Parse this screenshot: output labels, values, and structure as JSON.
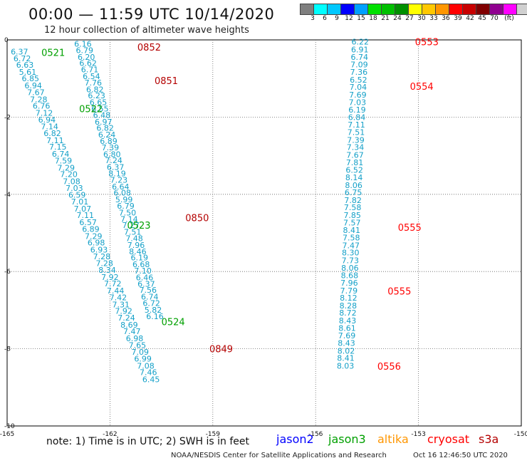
{
  "title": "00:00 — 11:59 UTC 10/14/2020",
  "subtitle": "12 hour collection of altimeter wave heights",
  "colorbar": {
    "colors": [
      "#7f7f7f",
      "#00ffff",
      "#00c8ff",
      "#0000ff",
      "#00a0ff",
      "#00e000",
      "#00c000",
      "#009000",
      "#ffff00",
      "#ffc800",
      "#ff9600",
      "#ff0000",
      "#c80000",
      "#800000",
      "#900090",
      "#ff00ff",
      "#d0d0d0",
      "#000000"
    ],
    "labels": [
      "3",
      "6",
      "9",
      "12",
      "15",
      "18",
      "21",
      "24",
      "27",
      "30",
      "33",
      "36",
      "39",
      "42",
      "45",
      "70"
    ],
    "unit": "(ft)"
  },
  "note": "note: 1) Time is in UTC; 2) SWH is in feet",
  "legend": [
    {
      "label": "jason2",
      "color": "#0000ff"
    },
    {
      "label": "jason3",
      "color": "#00a000"
    },
    {
      "label": "altika",
      "color": "#ff9600"
    },
    {
      "label": "cryosat",
      "color": "#ff0000"
    },
    {
      "label": "s3a",
      "color": "#b40000"
    }
  ],
  "credit": "NOAA/NESDIS Center for Satellite Applications and Research",
  "timestamp": "Oct 16 12:46:50 UTC 2020",
  "chart_data": {
    "type": "scatter",
    "xlim": [
      -165,
      -150
    ],
    "ylim": [
      -10,
      0
    ],
    "x_ticks": [
      "-165",
      "-162",
      "-159",
      "-156",
      "-153",
      "-150"
    ],
    "y_ticks": [
      "0",
      "-2",
      "-4",
      "-6",
      "-8",
      "-10"
    ],
    "grid": true,
    "value_color": "#14a0c8",
    "series": [
      {
        "name": "jason3",
        "color": "#00a000",
        "values": [
          [
            -164.64,
            -0.3,
            6.37
          ],
          [
            -164.56,
            -0.48,
            6.72
          ],
          [
            -164.48,
            -0.65,
            6.63
          ],
          [
            -164.4,
            -0.83,
            5.61
          ],
          [
            -164.32,
            -1.0,
            6.85
          ],
          [
            -164.24,
            -1.18,
            6.94
          ],
          [
            -164.16,
            -1.36,
            7.67
          ],
          [
            -164.08,
            -1.54,
            7.28
          ],
          [
            -164.0,
            -1.71,
            6.76
          ],
          [
            -163.92,
            -1.89,
            7.12
          ],
          [
            -163.84,
            -2.07,
            6.94
          ],
          [
            -163.76,
            -2.24,
            7.14
          ],
          [
            -163.68,
            -2.42,
            6.82
          ],
          [
            -163.6,
            -2.6,
            7.11
          ],
          [
            -163.52,
            -2.77,
            7.15
          ],
          [
            -163.44,
            -2.95,
            6.74
          ],
          [
            -163.36,
            -3.13,
            7.59
          ],
          [
            -163.28,
            -3.31,
            7.29
          ],
          [
            -163.2,
            -3.48,
            7.2
          ],
          [
            -163.12,
            -3.66,
            7.08
          ],
          [
            -163.04,
            -3.84,
            7.03
          ],
          [
            -162.96,
            -4.01,
            6.59
          ],
          [
            -162.88,
            -4.19,
            7.01
          ],
          [
            -162.8,
            -4.37,
            7.07
          ],
          [
            -162.72,
            -4.54,
            7.11
          ],
          [
            -162.64,
            -4.72,
            6.57
          ],
          [
            -162.56,
            -4.9,
            6.89
          ],
          [
            -162.48,
            -5.08,
            7.29
          ],
          [
            -162.4,
            -5.25,
            6.98
          ],
          [
            -162.32,
            -5.43,
            6.93
          ],
          [
            -162.24,
            -5.61,
            7.28
          ],
          [
            -162.16,
            -5.78,
            7.28
          ],
          [
            -162.08,
            -5.96,
            8.34
          ],
          [
            -162.0,
            -6.14,
            7.92
          ],
          [
            -161.92,
            -6.31,
            7.72
          ],
          [
            -161.84,
            -6.49,
            7.44
          ],
          [
            -161.76,
            -6.67,
            7.42
          ],
          [
            -161.68,
            -6.85,
            7.31
          ],
          [
            -161.6,
            -7.02,
            7.92
          ],
          [
            -161.52,
            -7.2,
            7.24
          ],
          [
            -161.44,
            -7.38,
            8.69
          ],
          [
            -161.36,
            -7.55,
            7.47
          ],
          [
            -161.28,
            -7.73,
            6.98
          ],
          [
            -161.2,
            -7.91,
            7.65
          ],
          [
            -161.12,
            -8.08,
            7.09
          ],
          [
            -161.04,
            -8.26,
            6.99
          ],
          [
            -160.96,
            -8.44,
            7.08
          ],
          [
            -160.88,
            -8.61,
            7.46
          ],
          [
            -160.8,
            -8.79,
            6.45
          ]
        ]
      },
      {
        "name": "s3a",
        "color": "#b40000",
        "values": [
          [
            -162.79,
            -0.1,
            6.16
          ],
          [
            -162.74,
            -0.27,
            6.79
          ],
          [
            -162.69,
            -0.44,
            6.2
          ],
          [
            -162.64,
            -0.6,
            6.62
          ],
          [
            -162.59,
            -0.77,
            6.71
          ],
          [
            -162.54,
            -0.94,
            6.54
          ],
          [
            -162.49,
            -1.11,
            7.76
          ],
          [
            -162.44,
            -1.28,
            6.82
          ],
          [
            -162.39,
            -1.44,
            6.23
          ],
          [
            -162.34,
            -1.61,
            6.65
          ],
          [
            -162.29,
            -1.78,
            6.55
          ],
          [
            -162.24,
            -1.95,
            6.48
          ],
          [
            -162.19,
            -2.12,
            6.97
          ],
          [
            -162.14,
            -2.28,
            6.82
          ],
          [
            -162.09,
            -2.45,
            6.24
          ],
          [
            -162.04,
            -2.62,
            6.89
          ],
          [
            -161.99,
            -2.79,
            7.39
          ],
          [
            -161.94,
            -2.96,
            6.8
          ],
          [
            -161.89,
            -3.12,
            7.24
          ],
          [
            -161.84,
            -3.29,
            6.37
          ],
          [
            -161.79,
            -3.46,
            8.19
          ],
          [
            -161.74,
            -3.63,
            7.23
          ],
          [
            -161.69,
            -3.8,
            6.64
          ],
          [
            -161.64,
            -3.96,
            6.08
          ],
          [
            -161.59,
            -4.13,
            5.99
          ],
          [
            -161.54,
            -4.3,
            6.79
          ],
          [
            -161.49,
            -4.47,
            7.5
          ],
          [
            -161.44,
            -4.64,
            7.14
          ],
          [
            -161.39,
            -4.8,
            7.27
          ],
          [
            -161.34,
            -4.97,
            7.51
          ],
          [
            -161.29,
            -5.14,
            7.48
          ],
          [
            -161.24,
            -5.31,
            7.96
          ],
          [
            -161.19,
            -5.48,
            8.46
          ],
          [
            -161.14,
            -5.64,
            6.19
          ],
          [
            -161.09,
            -5.81,
            6.68
          ],
          [
            -161.04,
            -5.98,
            7.1
          ],
          [
            -160.99,
            -6.15,
            6.46
          ],
          [
            -160.94,
            -6.32,
            6.37
          ],
          [
            -160.89,
            -6.48,
            7.56
          ],
          [
            -160.84,
            -6.65,
            6.74
          ],
          [
            -160.79,
            -6.82,
            6.72
          ],
          [
            -160.74,
            -6.99,
            5.82
          ],
          [
            -160.69,
            -7.16,
            6.16
          ]
        ]
      },
      {
        "name": "cryosat",
        "color": "#ff0000",
        "values": [
          [
            -154.7,
            -0.05,
            6.22
          ],
          [
            -154.71,
            -0.25,
            6.91
          ],
          [
            -154.72,
            -0.44,
            6.74
          ],
          [
            -154.73,
            -0.64,
            7.09
          ],
          [
            -154.74,
            -0.83,
            7.36
          ],
          [
            -154.75,
            -1.03,
            6.52
          ],
          [
            -154.76,
            -1.22,
            7.04
          ],
          [
            -154.77,
            -1.42,
            7.69
          ],
          [
            -154.78,
            -1.61,
            7.03
          ],
          [
            -154.79,
            -1.81,
            6.19
          ],
          [
            -154.8,
            -2.0,
            6.84
          ],
          [
            -154.81,
            -2.2,
            7.11
          ],
          [
            -154.82,
            -2.39,
            7.51
          ],
          [
            -154.83,
            -2.59,
            7.39
          ],
          [
            -154.84,
            -2.78,
            7.34
          ],
          [
            -154.85,
            -2.98,
            7.67
          ],
          [
            -154.86,
            -3.17,
            7.81
          ],
          [
            -154.87,
            -3.37,
            6.52
          ],
          [
            -154.88,
            -3.56,
            8.14
          ],
          [
            -154.89,
            -3.76,
            8.06
          ],
          [
            -154.9,
            -3.95,
            6.75
          ],
          [
            -154.91,
            -4.15,
            7.82
          ],
          [
            -154.92,
            -4.34,
            7.58
          ],
          [
            -154.93,
            -4.54,
            7.85
          ],
          [
            -154.94,
            -4.73,
            7.57
          ],
          [
            -154.95,
            -4.93,
            8.41
          ],
          [
            -154.96,
            -5.12,
            7.58
          ],
          [
            -154.97,
            -5.32,
            7.47
          ],
          [
            -154.98,
            -5.51,
            8.3
          ],
          [
            -154.99,
            -5.71,
            7.73
          ],
          [
            -155.0,
            -5.9,
            8.06
          ],
          [
            -155.01,
            -6.1,
            8.68
          ],
          [
            -155.02,
            -6.29,
            7.96
          ],
          [
            -155.03,
            -6.49,
            7.79
          ],
          [
            -155.04,
            -6.68,
            8.12
          ],
          [
            -155.05,
            -6.88,
            8.28
          ],
          [
            -155.06,
            -7.07,
            8.72
          ],
          [
            -155.07,
            -7.27,
            8.43
          ],
          [
            -155.08,
            -7.46,
            8.61
          ],
          [
            -155.09,
            -7.66,
            7.69
          ],
          [
            -155.1,
            -7.85,
            8.43
          ],
          [
            -155.11,
            -8.05,
            8.02
          ],
          [
            -155.12,
            -8.24,
            8.41
          ],
          [
            -155.13,
            -8.44,
            8.03
          ]
        ]
      }
    ],
    "time_labels": [
      {
        "text": "0521",
        "x": -164.0,
        "y": -0.32,
        "series": "jason3"
      },
      {
        "text": "0522",
        "x": -162.9,
        "y": -1.78,
        "series": "jason3"
      },
      {
        "text": "0523",
        "x": -161.5,
        "y": -4.8,
        "series": "jason3"
      },
      {
        "text": "0524",
        "x": -160.5,
        "y": -7.3,
        "series": "jason3"
      },
      {
        "text": "0852",
        "x": -161.2,
        "y": -0.18,
        "series": "s3a"
      },
      {
        "text": "0851",
        "x": -160.7,
        "y": -1.05,
        "series": "s3a"
      },
      {
        "text": "0850",
        "x": -159.8,
        "y": -4.6,
        "series": "s3a"
      },
      {
        "text": "0849",
        "x": -159.1,
        "y": -8.0,
        "series": "s3a"
      },
      {
        "text": "0553",
        "x": -153.1,
        "y": -0.05,
        "series": "cryosat"
      },
      {
        "text": "0554",
        "x": -153.25,
        "y": -1.2,
        "series": "cryosat"
      },
      {
        "text": "0555",
        "x": -153.6,
        "y": -4.85,
        "series": "cryosat"
      },
      {
        "text": "0555",
        "x": -153.9,
        "y": -6.5,
        "series": "cryosat"
      },
      {
        "text": "0556",
        "x": -154.2,
        "y": -8.45,
        "series": "cryosat"
      }
    ]
  }
}
